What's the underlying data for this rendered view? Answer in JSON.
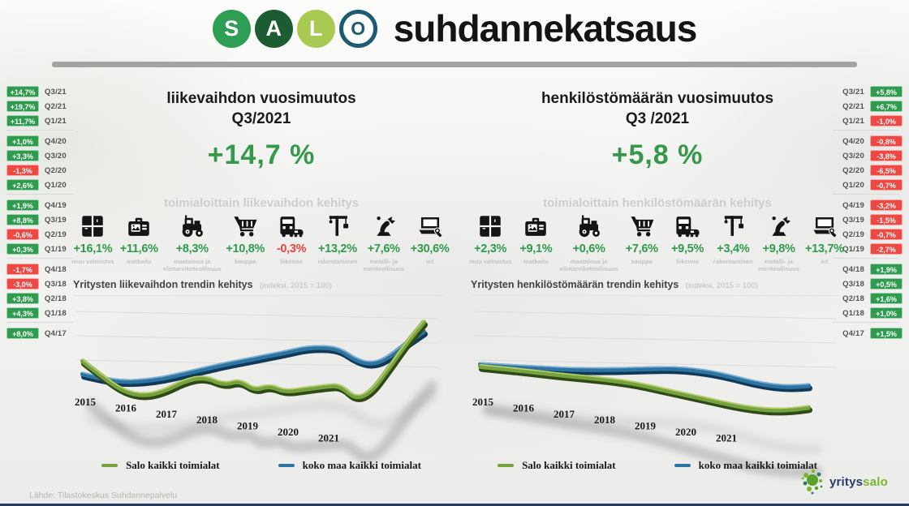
{
  "header": {
    "title": "suhdannekatsaus",
    "logo_letters": [
      {
        "char": "S",
        "bg": "#2e9e55"
      },
      {
        "char": "A",
        "bg": "#1c5c33"
      },
      {
        "char": "L",
        "bg": "#a8ca52"
      },
      {
        "char": "O",
        "bg": "#ffffff",
        "ring": "#1d5a73"
      }
    ]
  },
  "left_sidebar": {
    "groups": [
      3,
      4,
      4,
      4,
      1
    ],
    "rows": [
      {
        "value": "+14,7%",
        "quarter": "Q3/21",
        "positive": true
      },
      {
        "value": "+19,7%",
        "quarter": "Q2/21",
        "positive": true
      },
      {
        "value": "+11,7%",
        "quarter": "Q1/21",
        "positive": true
      },
      {
        "value": "+1,0%",
        "quarter": "Q4/20",
        "positive": true
      },
      {
        "value": "+3,3%",
        "quarter": "Q3/20",
        "positive": true
      },
      {
        "value": "-1,3%",
        "quarter": "Q2/20",
        "positive": false
      },
      {
        "value": "+2,6%",
        "quarter": "Q1/20",
        "positive": true
      },
      {
        "value": "+1,9%",
        "quarter": "Q4/19",
        "positive": true
      },
      {
        "value": "+8,8%",
        "quarter": "Q3/19",
        "positive": true
      },
      {
        "value": "-0,6%",
        "quarter": "Q2/19",
        "positive": false
      },
      {
        "value": "+0,3%",
        "quarter": "Q1/19",
        "positive": true
      },
      {
        "value": "-1,7%",
        "quarter": "Q4/18",
        "positive": false
      },
      {
        "value": "-3,0%",
        "quarter": "Q3/18",
        "positive": false
      },
      {
        "value": "+3,8%",
        "quarter": "Q2/18",
        "positive": true
      },
      {
        "value": "+4,3%",
        "quarter": "Q1/18",
        "positive": true
      },
      {
        "value": "+8,0%",
        "quarter": "Q4/17",
        "positive": true
      }
    ]
  },
  "right_sidebar": {
    "groups": [
      3,
      4,
      4,
      4,
      1
    ],
    "rows": [
      {
        "quarter": "Q3/21",
        "value": "+5,8%",
        "positive": true
      },
      {
        "quarter": "Q2/21",
        "value": "+6,7%",
        "positive": true
      },
      {
        "quarter": "Q1/21",
        "value": "-1,0%",
        "positive": false
      },
      {
        "quarter": "Q4/20",
        "value": "-0,8%",
        "positive": false
      },
      {
        "quarter": "Q3/20",
        "value": "-3,8%",
        "positive": false
      },
      {
        "quarter": "Q2/20",
        "value": "-6,5%",
        "positive": false
      },
      {
        "quarter": "Q1/20",
        "value": "-0,7%",
        "positive": false
      },
      {
        "quarter": "Q4/19",
        "value": "-3,2%",
        "positive": false
      },
      {
        "quarter": "Q3/19",
        "value": "-1,5%",
        "positive": false
      },
      {
        "quarter": "Q2/19",
        "value": "-0,7%",
        "positive": false
      },
      {
        "quarter": "Q1/19",
        "value": "-2,7%",
        "positive": false
      },
      {
        "quarter": "Q4/18",
        "value": "+1,9%",
        "positive": true
      },
      {
        "quarter": "Q3/18",
        "value": "+0,5%",
        "positive": true
      },
      {
        "quarter": "Q2/18",
        "value": "+1,6%",
        "positive": true
      },
      {
        "quarter": "Q1/18",
        "value": "+1,0%",
        "positive": true
      },
      {
        "quarter": "Q4/17",
        "value": "+1,5%",
        "positive": true
      }
    ]
  },
  "sections": [
    {
      "title_line1": "liikevaihdon vuosimuutos",
      "title_line2": "Q3/2021",
      "headline_value": "+14,7 %",
      "subheader": "toimialoittain liikevaihdon kehitys",
      "chart_title": "Yritysten liikevaihdon trendin kehitys",
      "chart_title_note": "(indeksi, 2015 = 100)",
      "sectors": [
        {
          "icon": "window-icon",
          "value": "+16,1%",
          "label": "muu valmistus",
          "positive": true
        },
        {
          "icon": "suitcase-icon",
          "value": "+11,6%",
          "label": "matkailu",
          "positive": true
        },
        {
          "icon": "tractor-icon",
          "value": "+8,3%",
          "label": "maatalous ja elintarviketeollisuus",
          "positive": true
        },
        {
          "icon": "cart-icon",
          "value": "+10,8%",
          "label": "kauppa",
          "positive": true
        },
        {
          "icon": "bus-icon",
          "value": "-0,3%",
          "label": "liikenne",
          "positive": false
        },
        {
          "icon": "crane-icon",
          "value": "+13,2%",
          "label": "rakentaminen",
          "positive": true
        },
        {
          "icon": "robot-arm-icon",
          "value": "+7,6%",
          "label": "metalli- ja meriteollisuus",
          "positive": true
        },
        {
          "icon": "laptop-icon",
          "value": "+30,6%",
          "label": "ict",
          "positive": true
        }
      ]
    },
    {
      "title_line1": "henkilöstömäärän vuosimuutos",
      "title_line2": "Q3 /2021",
      "headline_value": "+5,8 %",
      "subheader": "toimialoittain henkilöstömäärän kehitys",
      "chart_title": "Yritysten henkilöstömäärän trendin kehitys",
      "chart_title_note": "(indeksi, 2015 = 100)",
      "sectors": [
        {
          "icon": "window-icon",
          "value": "+2,3%",
          "label": "muu valmistus",
          "positive": true
        },
        {
          "icon": "suitcase-icon",
          "value": "+9,1%",
          "label": "matkailu",
          "positive": true
        },
        {
          "icon": "tractor-icon",
          "value": "+0,6%",
          "label": "maatalous ja elintarviketeollisuus",
          "positive": true
        },
        {
          "icon": "cart-icon",
          "value": "+7,6%",
          "label": "kauppa",
          "positive": true
        },
        {
          "icon": "bus-icon",
          "value": "+9,5%",
          "label": "liikenne",
          "positive": true
        },
        {
          "icon": "crane-icon",
          "value": "+3,4%",
          "label": "rakentaminen",
          "positive": true
        },
        {
          "icon": "robot-arm-icon",
          "value": "+9,8%",
          "label": "metalli- ja meriteollisuus",
          "positive": true
        },
        {
          "icon": "laptop-icon",
          "value": "+13,7%",
          "label": "ict",
          "positive": true
        }
      ]
    }
  ],
  "chart_data": [
    {
      "type": "line",
      "title": "Yritysten liikevaihdon trendin kehitys",
      "subtitle": "(indeksi, 2015 = 100)",
      "x_tick_labels": [
        "2015",
        "2016",
        "2017",
        "2018",
        "2019",
        "2020",
        "2021"
      ],
      "x": [
        2015,
        2015.4,
        2015.8,
        2016.2,
        2016.6,
        2017,
        2017.4,
        2017.8,
        2018.1,
        2018.4,
        2018.7,
        2019,
        2019.4,
        2019.8,
        2020.1,
        2020.4,
        2020.7,
        2021,
        2021.4,
        2021.75
      ],
      "series": [
        {
          "name": "Salo kaikki toimialat",
          "color": "#76a23f",
          "edge": "#2f4a16",
          "top": "#bad06a",
          "values": [
            101,
            97,
            93.5,
            92.5,
            94,
            97,
            98.5,
            96.5,
            98,
            95.5,
            97,
            95.5,
            96.5,
            97.5,
            98,
            94.5,
            96.5,
            102,
            110,
            116
          ]
        },
        {
          "name": "koko maa kaikki toimialat",
          "color": "#2e74a3",
          "edge": "#123a57",
          "top": "#7fb3d6",
          "values": [
            97.5,
            96.5,
            96,
            96.5,
            97.5,
            99,
            100.5,
            102,
            103,
            104,
            105,
            106,
            107.5,
            108,
            107.5,
            105,
            104,
            105.5,
            110,
            113.5
          ]
        }
      ],
      "ylim": [
        85,
        120
      ],
      "grid": true,
      "legend_position": "bottom"
    },
    {
      "type": "line",
      "title": "Yritysten henkilöstömäärän trendin kehitys",
      "subtitle": "(indeksi, 2015 = 100)",
      "x_tick_labels": [
        "2015",
        "2016",
        "2017",
        "2018",
        "2019",
        "2020",
        "2021"
      ],
      "x": [
        2015,
        2015.4,
        2015.8,
        2016.2,
        2016.6,
        2017,
        2017.4,
        2017.8,
        2018.2,
        2018.6,
        2019,
        2019.4,
        2019.8,
        2020.2,
        2020.6,
        2021,
        2021.4,
        2021.75
      ],
      "series": [
        {
          "name": "Salo kaikki toimialat",
          "color": "#76a23f",
          "edge": "#2f4a16",
          "top": "#bad06a",
          "values": [
            100,
            99.7,
            99.4,
            99,
            98.6,
            98.3,
            98,
            97.6,
            97,
            96,
            95,
            94,
            93,
            92,
            91.3,
            91,
            91.4,
            92.3
          ]
        },
        {
          "name": "koko maa kaikki toimialat",
          "color": "#2e74a3",
          "edge": "#123a57",
          "top": "#7fb3d6",
          "values": [
            100.6,
            100.5,
            100.4,
            100.4,
            100.3,
            100.4,
            100.6,
            100.9,
            101.3,
            101.7,
            102,
            101.8,
            101.2,
            100.2,
            99,
            98.2,
            98.1,
            98.7
          ]
        }
      ],
      "ylim": [
        88,
        105
      ],
      "grid": true,
      "legend_position": "bottom"
    }
  ],
  "legend": [
    {
      "label": "Salo kaikki toimialat",
      "color": "#76a23f"
    },
    {
      "label": "koko maa kaikki toimialat",
      "color": "#2e74a3"
    }
  ],
  "footer": {
    "source": "Lähde: Tilastokeskus Suhdannepalvelu",
    "brand_part1": "yritys",
    "brand_part2": "salo"
  },
  "colors": {
    "positive": "#2f9b4e",
    "negative": "#ef4842",
    "headline_green": "#36984a",
    "salo_green": "#76a23f",
    "country_blue": "#2e74a3"
  }
}
